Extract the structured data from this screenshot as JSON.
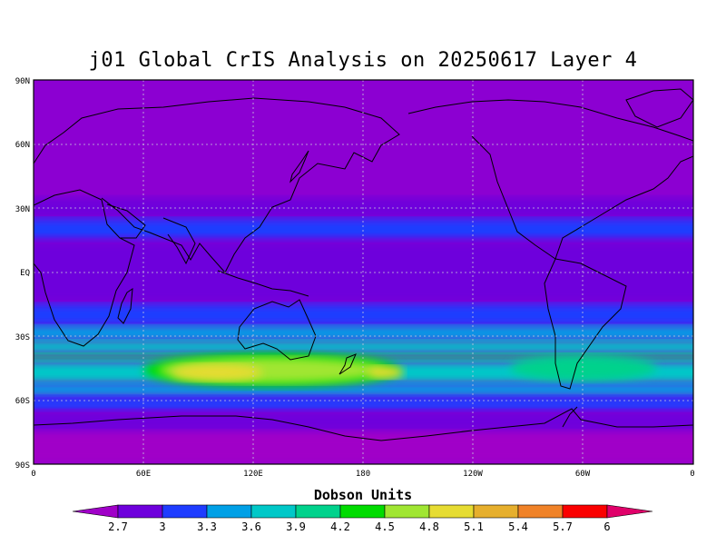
{
  "title": "j01 Global CrIS Analysis on 20250617 Layer 4",
  "colorbar": {
    "units": "Dobson Units",
    "labels": [
      "2.7",
      "3",
      "3.3",
      "3.6",
      "3.9",
      "4.2",
      "4.5",
      "4.8",
      "5.1",
      "5.4",
      "5.7",
      "6"
    ],
    "below_color": "#a000c8",
    "above_color": "#e0006a",
    "colors": [
      "#6e00dc",
      "#1e3cff",
      "#00a0e6",
      "#00c8c8",
      "#00d28c",
      "#00dc00",
      "#a0e632",
      "#e6dc32",
      "#e6af2d",
      "#f08228",
      "#fa0000"
    ]
  },
  "axes": {
    "lat_labels": [
      "90N",
      "60N",
      "30N",
      "EQ",
      "30S",
      "60S",
      "90S"
    ],
    "lon_labels": [
      "0",
      "60E",
      "120E",
      "180",
      "120W",
      "60W",
      "0"
    ]
  },
  "map": {
    "background_color": "#8c00d2",
    "bands": [
      {
        "lat_from": 90,
        "lat_to": 35,
        "color": "#8c00d2"
      },
      {
        "lat_from": 35,
        "lat_to": 25,
        "color": "#6e00dc"
      },
      {
        "lat_from": 25,
        "lat_to": 15,
        "color": "#1e3cff"
      },
      {
        "lat_from": 15,
        "lat_to": -15,
        "color": "#6e00dc"
      },
      {
        "lat_from": -15,
        "lat_to": -25,
        "color": "#1e3cff"
      },
      {
        "lat_from": -25,
        "lat_to": -32,
        "color": "#00a0e6"
      },
      {
        "lat_from": -32,
        "lat_to": -38,
        "color": "#00c8c8"
      },
      {
        "lat_from": -38,
        "lat_to": -42,
        "color": "#00d28c"
      },
      {
        "lat_from": -42,
        "lat_to": -52,
        "color": "#00c8c8"
      },
      {
        "lat_from": -52,
        "lat_to": -58,
        "color": "#00a0e6"
      },
      {
        "lat_from": -58,
        "lat_to": -65,
        "color": "#1e3cff"
      },
      {
        "lat_from": -65,
        "lat_to": -75,
        "color": "#6e00dc"
      },
      {
        "lat_from": -75,
        "lat_to": -90,
        "color": "#a000c8"
      }
    ],
    "ozone_blobs": [
      {
        "lon": 130,
        "lat": -46,
        "dlon": 70,
        "dlat": 8,
        "color": "#00dc00"
      },
      {
        "lon": 130,
        "lat": -46,
        "dlon": 62,
        "dlat": 6,
        "color": "#a0e632"
      },
      {
        "lon": 100,
        "lat": -47,
        "dlon": 25,
        "dlat": 4,
        "color": "#e6dc32"
      },
      {
        "lon": 192,
        "lat": -47,
        "dlon": 10,
        "dlat": 3,
        "color": "#e6dc32"
      },
      {
        "lon": 300,
        "lat": -45,
        "dlon": 40,
        "dlat": 6,
        "color": "#00d28c"
      }
    ]
  }
}
